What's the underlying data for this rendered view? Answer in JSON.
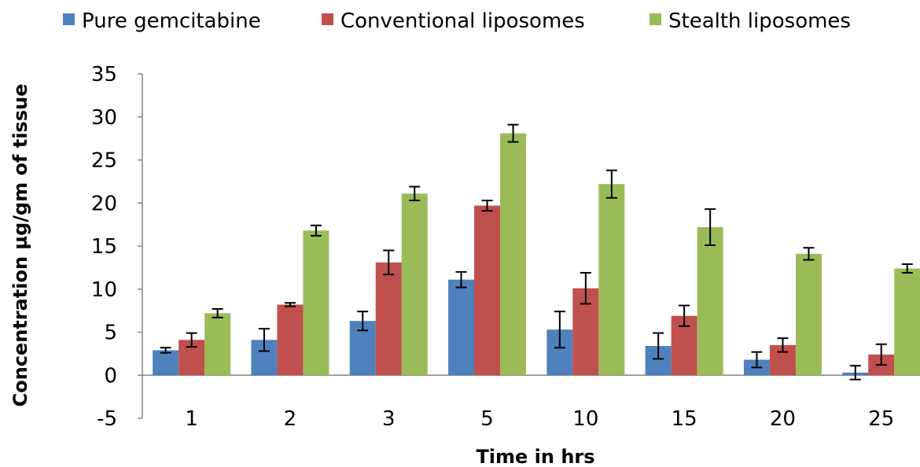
{
  "chart_data": {
    "type": "bar",
    "xlabel": "Time in hrs",
    "ylabel": "Concentration µg/gm of tissue",
    "ylim": [
      -5,
      35
    ],
    "yticks": [
      -5,
      0,
      5,
      10,
      15,
      20,
      25,
      30,
      35
    ],
    "grid": false,
    "legend": "top",
    "categories": [
      "1",
      "2",
      "3",
      "5",
      "10",
      "15",
      "20",
      "25"
    ],
    "series": [
      {
        "name": "Pure gemcitabine",
        "color": "#4F81BD",
        "values": [
          2.9,
          4.1,
          6.3,
          11.1,
          5.3,
          3.4,
          1.8,
          0.3
        ],
        "errors": [
          0.3,
          1.3,
          1.1,
          0.9,
          2.1,
          1.5,
          0.9,
          0.8
        ]
      },
      {
        "name": "Conventional liposomes",
        "color": "#C0504D",
        "values": [
          4.1,
          8.2,
          13.1,
          19.7,
          10.1,
          6.9,
          3.5,
          2.4
        ],
        "errors": [
          0.8,
          0.2,
          1.4,
          0.6,
          1.8,
          1.2,
          0.8,
          1.2
        ]
      },
      {
        "name": "Stealth liposomes",
        "color": "#9BBB59",
        "values": [
          7.2,
          16.8,
          21.1,
          28.1,
          22.2,
          17.2,
          14.1,
          12.4
        ],
        "errors": [
          0.5,
          0.6,
          0.8,
          1.0,
          1.6,
          2.1,
          0.7,
          0.5
        ]
      }
    ]
  }
}
